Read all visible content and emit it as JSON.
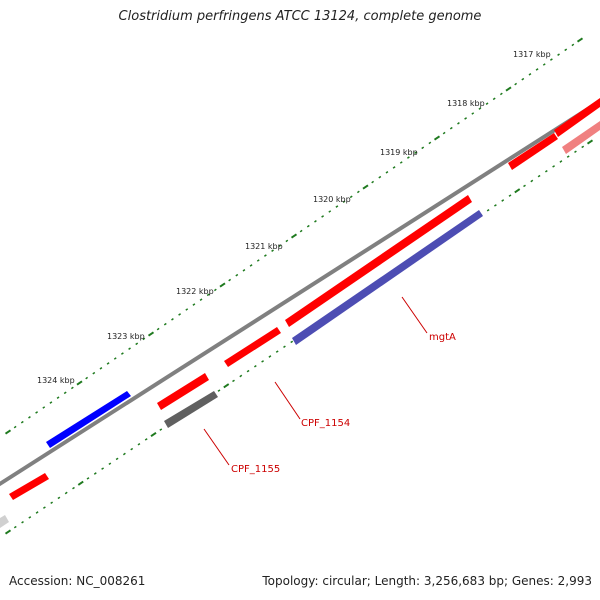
{
  "title": "Clostridium perfringens ATCC 13124, complete genome",
  "footer": {
    "accession": "Accession: NC_008261",
    "stats": "Topology: circular; Length: 3,256,683 bp; Genes: 2,993"
  },
  "colors": {
    "backbone": "#808080",
    "tick": "#1f7a1f",
    "label_line": "#cc0000",
    "label_text": "#cc0000",
    "forward_gene": "#ff0000",
    "reverse_gene": "#4d4db3",
    "blue_gene": "#0000ff",
    "gray_gene": "#606060",
    "pink_gene": "#f08080",
    "light_gray_gene": "#d0d0d0"
  },
  "outer_ruler": {
    "labels": [
      "1317 kbp",
      "1318 kbp",
      "1319 kbp",
      "1320 kbp",
      "1321 kbp",
      "1322 kbp",
      "1323 kbp",
      "1324 kbp"
    ]
  },
  "gene_labels": [
    {
      "name": "mgtA",
      "gene": "mgtA"
    },
    {
      "name": "cpf-1154",
      "gene": "CPF_1154"
    },
    {
      "name": "cpf-1155",
      "gene": "CPF_1155"
    }
  ]
}
